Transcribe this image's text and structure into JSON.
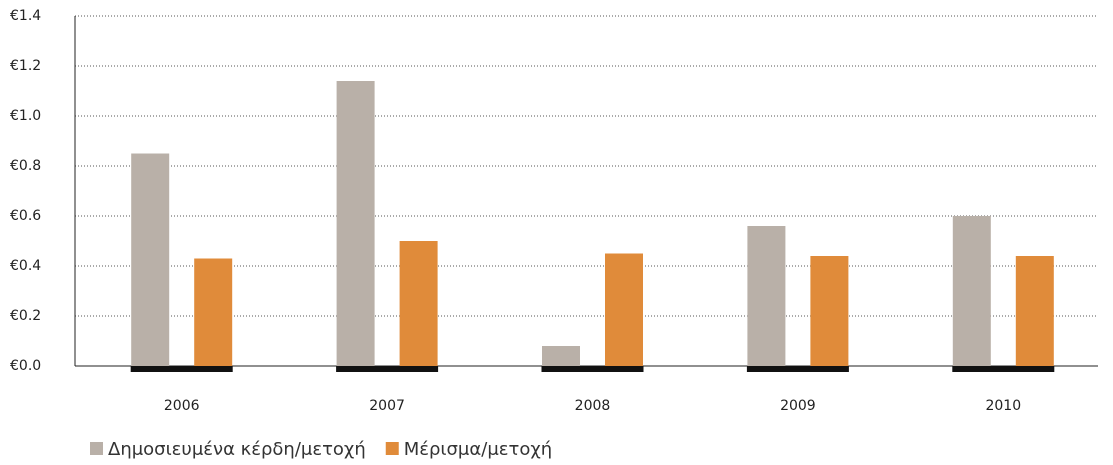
{
  "chart_data": {
    "type": "bar",
    "categories": [
      "2006",
      "2007",
      "2008",
      "2009",
      "2010"
    ],
    "series": [
      {
        "name": "Δημοσιευμένα κέρδη/μετοχή",
        "color": "#b9b0a8",
        "values": [
          0.85,
          1.14,
          0.08,
          0.56,
          0.6
        ]
      },
      {
        "name": "Μέρισμα/μετοχή",
        "color": "#e08b3a",
        "values": [
          0.43,
          0.5,
          0.45,
          0.44,
          0.44
        ]
      }
    ],
    "ylim": [
      0,
      1.4
    ],
    "yticks": [
      {
        "value": 0,
        "label": "€0.0"
      },
      {
        "value": 0.2,
        "label": "€0.2"
      },
      {
        "value": 0.4,
        "label": "€0.4"
      },
      {
        "value": 0.6,
        "label": "€0.6"
      },
      {
        "value": 0.8,
        "label": "€0.8"
      },
      {
        "value": 1.0,
        "label": "€1.0"
      },
      {
        "value": 1.2,
        "label": "€1.2"
      },
      {
        "value": 1.4,
        "label": "€1.4"
      }
    ],
    "grid": true
  }
}
